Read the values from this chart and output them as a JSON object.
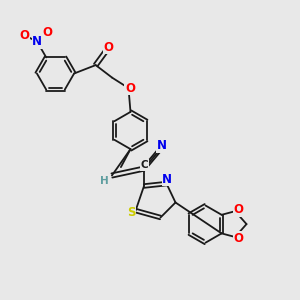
{
  "bg_color": "#e8e8e8",
  "bond_color": "#1a1a1a",
  "atom_colors": {
    "O": "#ff0000",
    "N": "#0000ee",
    "S": "#cccc00",
    "H": "#5f9ea0"
  },
  "lw": 1.3,
  "fs": 7.5
}
